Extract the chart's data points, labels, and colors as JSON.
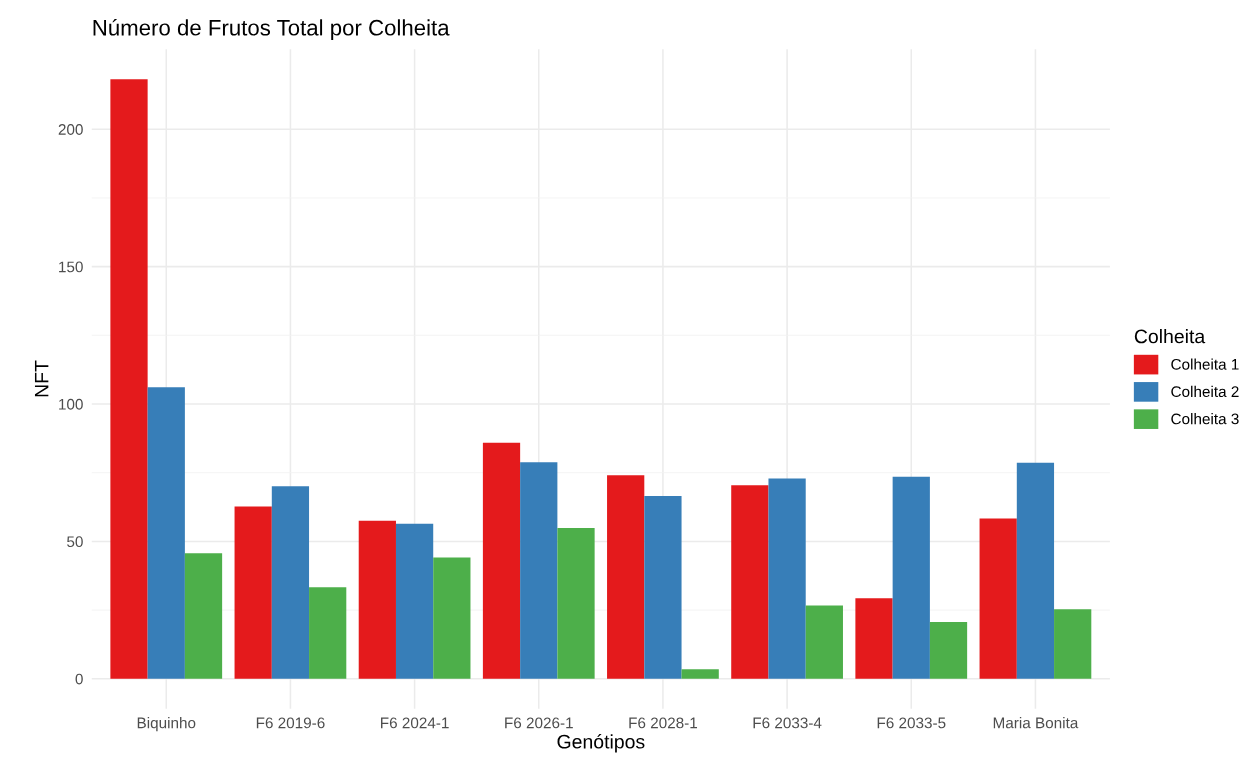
{
  "chart_data": {
    "type": "bar",
    "title": "Número de Frutos Total por Colheita",
    "xlabel": "Genótipos",
    "ylabel": "NFT",
    "legend_title": "Colheita",
    "categories": [
      "Biquinho",
      "F6 2019-6",
      "F6 2024-1",
      "F6 2026-1",
      "F6 2028-1",
      "F6 2033-4",
      "F6 2033-5",
      "Maria Bonita"
    ],
    "series": [
      {
        "name": "Colheita 1",
        "color": "#e41a1c",
        "values": [
          218.2,
          62.7,
          57.5,
          85.9,
          74.1,
          70.4,
          29.3,
          58.3
        ]
      },
      {
        "name": "Colheita 2",
        "color": "#377eb8",
        "values": [
          106.1,
          70.1,
          56.4,
          78.8,
          66.5,
          72.9,
          73.5,
          78.6
        ]
      },
      {
        "name": "Colheita 3",
        "color": "#4daf4a",
        "values": [
          45.7,
          33.3,
          44.1,
          54.9,
          3.5,
          26.7,
          20.7,
          25.3
        ]
      }
    ],
    "ylim": [
      -10.9,
      229.1
    ],
    "yticks": [
      0,
      50,
      100,
      150,
      200
    ],
    "grid": true,
    "legend": "right"
  }
}
